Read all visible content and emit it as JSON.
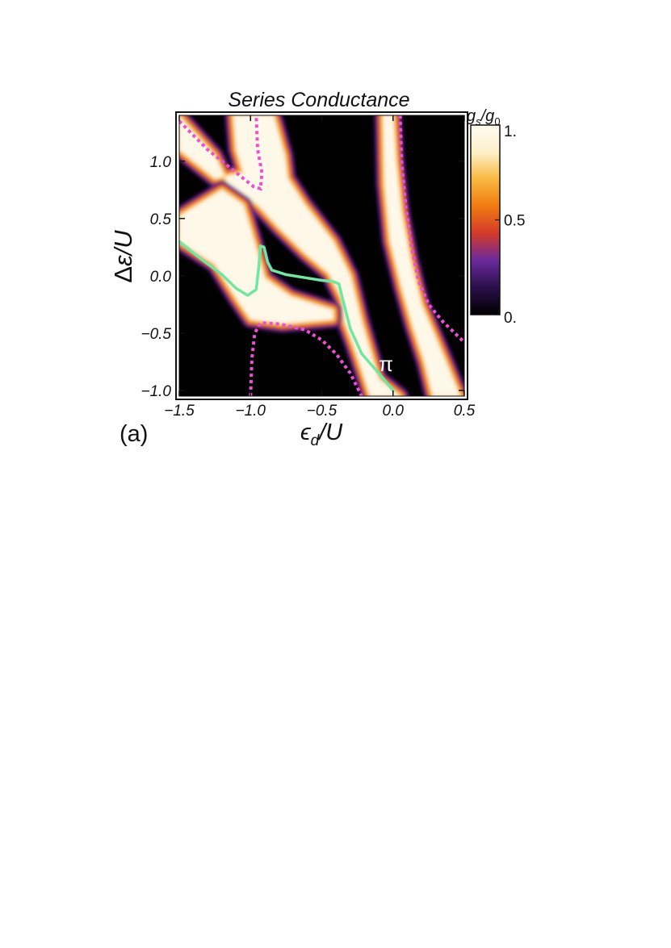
{
  "panel_label": "(a)",
  "chart_data": {
    "type": "heatmap",
    "title": "Series Conductance",
    "xlabel": "ϵd/U",
    "ylabel": "Δε/U",
    "xlim": [
      -1.5,
      0.5
    ],
    "ylim": [
      -1.05,
      1.4
    ],
    "xticks": [
      -1.5,
      -1.0,
      -0.5,
      0.0,
      0.5
    ],
    "xtick_labels": [
      "−1.5",
      "−1.0",
      "−0.5",
      "0.0",
      "0.5"
    ],
    "yticks": [
      -1.0,
      -0.5,
      0.0,
      0.5,
      1.0
    ],
    "ytick_labels": [
      "−1.0",
      "−0.5",
      "0.0",
      "0.5",
      "1.0"
    ],
    "colorbar": {
      "label": "gs/g0",
      "range": [
        0,
        1
      ],
      "ticks": [
        0,
        0.5,
        1
      ],
      "tick_labels": [
        "0.",
        "0.5",
        "1."
      ],
      "colors": [
        "#000000",
        "#2a0f4a",
        "#6a2a9c",
        "#d43a2a",
        "#f07a10",
        "#f8b840",
        "#fdf0c8",
        "#fffdf4"
      ]
    },
    "high_conductance_regions": [
      {
        "name": "bright-band-1",
        "points": [
          [
            -1.5,
            1.39
          ],
          [
            -1.25,
            1.05
          ],
          [
            -1.15,
            0.78
          ],
          [
            -0.95,
            0.62
          ],
          [
            -0.8,
            0.42
          ],
          [
            -0.62,
            0.2
          ],
          [
            -0.45,
            0.02
          ],
          [
            -0.36,
            -0.2
          ],
          [
            -0.34,
            -0.4
          ],
          [
            -0.28,
            -0.6
          ],
          [
            -0.22,
            -0.82
          ],
          [
            -0.16,
            -1.05
          ],
          [
            0.05,
            -1.05
          ],
          [
            -0.1,
            -0.9
          ],
          [
            -0.22,
            -0.4
          ],
          [
            -0.3,
            0.0
          ],
          [
            -0.42,
            0.3
          ],
          [
            -0.62,
            0.62
          ],
          [
            -0.74,
            0.85
          ],
          [
            -0.76,
            1.05
          ],
          [
            -0.84,
            1.4
          ],
          [
            -1.12,
            1.4
          ],
          [
            -1.1,
            1.1
          ],
          [
            -1.05,
            0.9
          ],
          [
            -1.25,
            0.85
          ],
          [
            -1.5,
            1.1
          ]
        ]
      },
      {
        "name": "bright-band-2",
        "points": [
          [
            -1.5,
            0.52
          ],
          [
            -1.2,
            0.75
          ],
          [
            -1.05,
            0.62
          ],
          [
            -0.95,
            0.2
          ],
          [
            -0.9,
            -0.02
          ],
          [
            -0.72,
            -0.18
          ],
          [
            -0.42,
            -0.3
          ],
          [
            -0.42,
            -0.38
          ],
          [
            -0.78,
            -0.42
          ],
          [
            -1.0,
            -0.38
          ],
          [
            -1.1,
            -0.2
          ],
          [
            -1.25,
            0.1
          ],
          [
            -1.5,
            0.3
          ]
        ]
      },
      {
        "name": "bright-band-3",
        "points": [
          [
            0.0,
            1.4
          ],
          [
            0.02,
            1.0
          ],
          [
            0.06,
            0.55
          ],
          [
            0.12,
            0.15
          ],
          [
            0.2,
            -0.25
          ],
          [
            0.32,
            -0.6
          ],
          [
            0.42,
            -0.9
          ],
          [
            0.47,
            -1.05
          ],
          [
            0.28,
            -1.05
          ],
          [
            0.22,
            -0.75
          ],
          [
            0.14,
            -0.45
          ],
          [
            0.06,
            -0.1
          ],
          [
            -0.02,
            0.3
          ],
          [
            -0.06,
            0.8
          ],
          [
            -0.07,
            1.4
          ]
        ]
      }
    ],
    "crossover_boundaries": [
      {
        "name": "crossover-left-lower",
        "points": [
          [
            -1.0,
            -1.05
          ],
          [
            -0.99,
            -0.72
          ],
          [
            -0.97,
            -0.5
          ],
          [
            -0.93,
            -0.41
          ],
          [
            -0.8,
            -0.42
          ],
          [
            -0.62,
            -0.47
          ],
          [
            -0.5,
            -0.56
          ],
          [
            -0.4,
            -0.68
          ],
          [
            -0.3,
            -0.85
          ],
          [
            -0.22,
            -1.05
          ]
        ]
      },
      {
        "name": "crossover-left-upper",
        "points": [
          [
            -1.5,
            1.35
          ],
          [
            -1.3,
            1.1
          ],
          [
            -1.12,
            0.92
          ],
          [
            -0.98,
            0.78
          ],
          [
            -0.93,
            0.76
          ],
          [
            -0.92,
            0.9
          ],
          [
            -0.95,
            1.1
          ],
          [
            -0.96,
            1.4
          ]
        ]
      },
      {
        "name": "crossover-right",
        "points": [
          [
            0.05,
            1.4
          ],
          [
            0.06,
            1.0
          ],
          [
            0.09,
            0.6
          ],
          [
            0.13,
            0.25
          ],
          [
            0.18,
            -0.05
          ],
          [
            0.25,
            -0.25
          ],
          [
            0.35,
            -0.4
          ],
          [
            0.45,
            -0.52
          ],
          [
            0.5,
            -0.58
          ]
        ]
      }
    ],
    "quantum_phase_transition": {
      "name": "0-π transition",
      "points": [
        [
          -1.5,
          0.3
        ],
        [
          -1.35,
          0.15
        ],
        [
          -1.2,
          0.01
        ],
        [
          -1.1,
          -0.11
        ],
        [
          -1.02,
          -0.17
        ],
        [
          -0.96,
          -0.12
        ],
        [
          -0.94,
          0.1
        ],
        [
          -0.93,
          0.26
        ],
        [
          -0.905,
          0.25
        ],
        [
          -0.88,
          0.12
        ],
        [
          -0.85,
          0.05
        ],
        [
          -0.75,
          0.01
        ],
        [
          -0.6,
          -0.02
        ],
        [
          -0.5,
          -0.04
        ],
        [
          -0.42,
          -0.05
        ],
        [
          -0.38,
          -0.07
        ],
        [
          -0.35,
          -0.22
        ],
        [
          -0.3,
          -0.46
        ],
        [
          -0.22,
          -0.68
        ],
        [
          -0.1,
          -0.85
        ],
        [
          0.0,
          -1.0
        ]
      ]
    },
    "annotations": [
      {
        "text": "π",
        "x": -0.05,
        "y": -0.83
      }
    ],
    "grid": false,
    "legend": "colorbar at right"
  }
}
